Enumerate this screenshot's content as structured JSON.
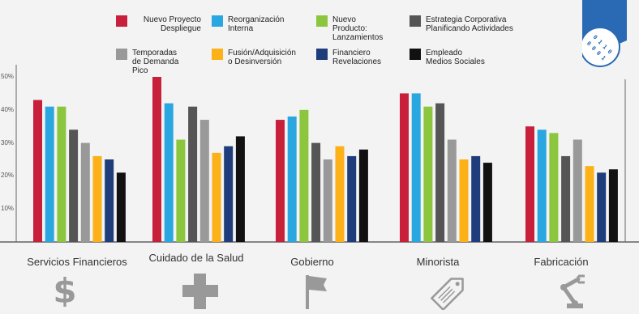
{
  "chart_data": {
    "type": "bar",
    "categories": [
      "Servicios Financieros",
      "Cuidado de la Salud",
      "Gobierno",
      "Minorista",
      "Fabricación"
    ],
    "ylim": [
      0,
      0.55
    ],
    "yticks": [
      {
        "value": 0.1,
        "label": "10%"
      },
      {
        "value": 0.2,
        "label": "20%"
      },
      {
        "value": 0.3,
        "label": "30%"
      },
      {
        "value": 0.4,
        "label": "40%"
      },
      {
        "value": 0.5,
        "label": "50%"
      }
    ],
    "grid": false,
    "legend_position": "top",
    "series": [
      {
        "name": "Nuevo Proyecto\nDespliegue",
        "color": "#c8203a",
        "values": [
          0.43,
          0.5,
          0.37,
          0.45,
          0.35
        ]
      },
      {
        "name": "Reorganización\nInterna",
        "color": "#2aa6e0",
        "values": [
          0.41,
          0.42,
          0.38,
          0.45,
          0.34
        ]
      },
      {
        "name": "Nuevo\nProducto:\nLanzamientos",
        "color": "#8cc63f",
        "values": [
          0.41,
          0.31,
          0.4,
          0.41,
          0.33
        ]
      },
      {
        "name": "Estrategia Corporativa\nPlanificando Actividades",
        "color": "#555555",
        "values": [
          0.34,
          0.41,
          0.3,
          0.42,
          0.26
        ]
      },
      {
        "name": "Temporadas\nde Demanda\nPico",
        "color": "#999999",
        "values": [
          0.3,
          0.37,
          0.25,
          0.31,
          0.31
        ]
      },
      {
        "name": "Fusión/Adquisición\no Desinversión",
        "color": "#fbb117",
        "values": [
          0.26,
          0.27,
          0.29,
          0.25,
          0.23
        ]
      },
      {
        "name": "Financiero\nRevelaciones",
        "color": "#1f3d7a",
        "values": [
          0.25,
          0.29,
          0.26,
          0.26,
          0.21
        ]
      },
      {
        "name": "Empleado\nMedios Sociales",
        "color": "#111111",
        "values": [
          0.21,
          0.32,
          0.28,
          0.24,
          0.22
        ]
      }
    ]
  },
  "badge": {
    "color": "#2a6ab4",
    "text": "0 1 1 0\n0 0 0 1"
  },
  "icons": [
    "dollar-icon",
    "plus-icon",
    "flag-icon",
    "price-tag-icon",
    "robot-arm-icon"
  ],
  "icon_color": "#999999",
  "dollar_glyph": "$"
}
